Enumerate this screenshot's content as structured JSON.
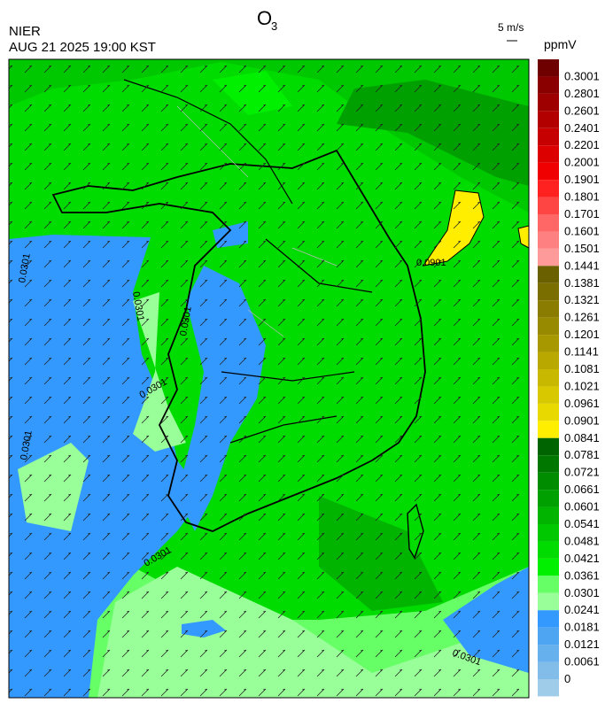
{
  "header": {
    "title": {
      "base": "O",
      "subscript": "3"
    },
    "agency": "NIER",
    "timestamp": "AUG 21 2025 19:00 KST",
    "wind_scale": "5 m/s"
  },
  "legend": {
    "unit": "ppmV",
    "top_color": "#6e0000",
    "levels": [
      {
        "label": "0.3001",
        "color": "#8a0000"
      },
      {
        "label": "0.2801",
        "color": "#9e0000"
      },
      {
        "label": "0.2601",
        "color": "#b20000"
      },
      {
        "label": "0.2401",
        "color": "#c60000"
      },
      {
        "label": "0.2201",
        "color": "#dc0000"
      },
      {
        "label": "0.2001",
        "color": "#f00000"
      },
      {
        "label": "0.1901",
        "color": "#ff2020"
      },
      {
        "label": "0.1801",
        "color": "#ff4444"
      },
      {
        "label": "0.1701",
        "color": "#ff6666"
      },
      {
        "label": "0.1601",
        "color": "#ff8080"
      },
      {
        "label": "0.1501",
        "color": "#ff9a9a"
      },
      {
        "label": "0.1441",
        "color": "#6b6000"
      },
      {
        "label": "0.1381",
        "color": "#7a6e00"
      },
      {
        "label": "0.1321",
        "color": "#897c00"
      },
      {
        "label": "0.1261",
        "color": "#988a00"
      },
      {
        "label": "0.1201",
        "color": "#a89800"
      },
      {
        "label": "0.1141",
        "color": "#b8a800"
      },
      {
        "label": "0.1081",
        "color": "#c8b800"
      },
      {
        "label": "0.1021",
        "color": "#d8c800"
      },
      {
        "label": "0.0961",
        "color": "#e8da00"
      },
      {
        "label": "0.0901",
        "color": "#ffee00"
      },
      {
        "label": "0.0841",
        "color": "#006400"
      },
      {
        "label": "0.0781",
        "color": "#007800"
      },
      {
        "label": "0.0721",
        "color": "#008c00"
      },
      {
        "label": "0.0661",
        "color": "#00a000"
      },
      {
        "label": "0.0601",
        "color": "#00b400"
      },
      {
        "label": "0.0541",
        "color": "#00c800"
      },
      {
        "label": "0.0481",
        "color": "#00dc00"
      },
      {
        "label": "0.0421",
        "color": "#00f000"
      },
      {
        "label": "0.0361",
        "color": "#66ff66"
      },
      {
        "label": "0.0301",
        "color": "#99ff99"
      },
      {
        "label": "0.0241",
        "color": "#3399ff"
      },
      {
        "label": "0.0181",
        "color": "#4ea6f2"
      },
      {
        "label": "0.0121",
        "color": "#66b0ee"
      },
      {
        "label": "0.0061",
        "color": "#82bde9"
      },
      {
        "label": "0",
        "color": "#9fcde9"
      }
    ]
  },
  "contour_labels": [
    "0.0901",
    "0.0301",
    "0.0301",
    "0.0301",
    "0.0301",
    "0.0301",
    "0.0301",
    "0.0301"
  ]
}
